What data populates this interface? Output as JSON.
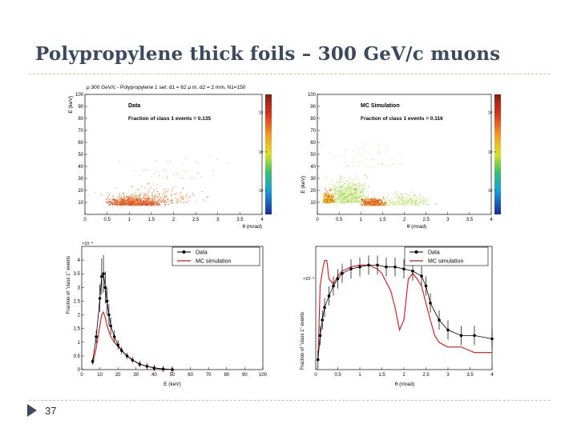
{
  "slide": {
    "title": "Polypropylene thick foils – 300 GeV/c muons",
    "page_number": "37"
  },
  "colors": {
    "data_marker": "#000000",
    "mc_line": "#dd1111",
    "heat_low": "#e0512a",
    "heat_mid": "#9ad24a"
  },
  "chart_data": [
    {
      "type": "heatmap",
      "title": "μ 300 GeV/c - Polypropylene 1 set: d1 = 62 μ m, d2 = 2 mm, N1=150",
      "label": "Data",
      "annotation": "Fraction of class 1 events = 0.135",
      "xlabel": "θ (mrad)",
      "ylabel": "E (keV)",
      "xlim": [
        0,
        4
      ],
      "ylim": [
        0,
        100
      ],
      "xticks": [
        "0",
        "0.5",
        "1",
        "1.5",
        "2",
        "2.5",
        "3",
        "3.5",
        "4"
      ],
      "yticks": [
        "10",
        "20",
        "30",
        "40",
        "50",
        "60",
        "70",
        "80",
        "90",
        "100"
      ],
      "colorbar_ticks": [
        "10⁻⁴",
        "10⁻⁵",
        "10⁻⁶"
      ],
      "density_peak": {
        "x": 1.1,
        "y": 13
      }
    },
    {
      "type": "heatmap",
      "label": "MC Simulation",
      "annotation": "Fraction of class 1 events = 0.116",
      "xlabel": "θ (mrad)",
      "ylabel": "E (keV)",
      "xlim": [
        0,
        4
      ],
      "ylim": [
        0,
        100
      ],
      "xticks": [
        "0",
        "0.5",
        "1",
        "1.5",
        "2",
        "2.5",
        "3",
        "3.5",
        "4"
      ],
      "yticks": [
        "10",
        "20",
        "30",
        "40",
        "50",
        "60",
        "70",
        "80",
        "90",
        "100"
      ],
      "colorbar_ticks": [
        "10⁻⁴",
        "10⁻⁵",
        "10⁻⁶"
      ],
      "density_peak": {
        "x": 1.3,
        "y": 13
      }
    },
    {
      "type": "line",
      "xlabel": "E (keV)",
      "ylabel": "Fraction of \"class 1\" events",
      "xlim": [
        0,
        100
      ],
      "ylim": [
        0,
        0.0045
      ],
      "exponent_label": "×10⁻³",
      "xticks": [
        "0",
        "10",
        "20",
        "30",
        "40",
        "50",
        "60",
        "70",
        "80",
        "90",
        "100"
      ],
      "yticks": [
        "0",
        "0.5",
        "1",
        "1.5",
        "2",
        "2.5",
        "3",
        "3.5",
        "4"
      ],
      "legend": [
        "Data",
        "MC simulation"
      ],
      "series": [
        {
          "name": "Data",
          "x": [
            6,
            8,
            10,
            11,
            12,
            13,
            14,
            15,
            16,
            18,
            20,
            22,
            25,
            28,
            32,
            36,
            40,
            45,
            50
          ],
          "values": [
            0.0003,
            0.0012,
            0.0026,
            0.0034,
            0.0035,
            0.003,
            0.0025,
            0.002,
            0.0016,
            0.0012,
            0.0009,
            0.0007,
            0.0005,
            0.00035,
            0.0002,
            0.00012,
            6e-05,
            2e-05,
            0.0
          ]
        },
        {
          "name": "MC simulation",
          "x": [
            6,
            8,
            10,
            11,
            12,
            13,
            14,
            15,
            16,
            18,
            20,
            22,
            25,
            28,
            32,
            36,
            40,
            45,
            50
          ],
          "values": [
            0.0002,
            0.0008,
            0.0016,
            0.002,
            0.0021,
            0.0019,
            0.0016,
            0.0014,
            0.0012,
            0.001,
            0.00085,
            0.0007,
            0.0005,
            0.00035,
            0.0002,
            0.00012,
            6e-05,
            2e-05,
            0.0
          ]
        }
      ]
    },
    {
      "type": "line",
      "xlabel": "θ (mrad)",
      "ylabel": "Fraction of \"class 1\" events",
      "xlim": [
        0,
        4
      ],
      "yscale": "log",
      "ylim": [
        2e-05,
        0.003
      ],
      "exponent_label": "×10⁻³",
      "xticks": [
        "0",
        "0.5",
        "1",
        "1.5",
        "2",
        "2.5",
        "3",
        "3.5",
        "4"
      ],
      "legend": [
        "Data",
        "MC simulation"
      ],
      "series": [
        {
          "name": "Data",
          "x": [
            0.05,
            0.1,
            0.15,
            0.2,
            0.3,
            0.4,
            0.5,
            0.6,
            0.8,
            1.0,
            1.2,
            1.4,
            1.6,
            1.8,
            2.0,
            2.2,
            2.4,
            2.5,
            2.6,
            2.8,
            3.0,
            3.3,
            3.6,
            4.0
          ],
          "values": [
            3e-05,
            8e-05,
            0.00015,
            0.00025,
            0.0004,
            0.0006,
            0.0008,
            0.001,
            0.0012,
            0.0013,
            0.0014,
            0.0014,
            0.0013,
            0.0013,
            0.0012,
            0.0011,
            0.0009,
            0.0006,
            0.0003,
            0.00015,
            0.0001,
            8e-05,
            8e-05,
            7e-05
          ]
        },
        {
          "name": "MC simulation",
          "x": [
            0.05,
            0.1,
            0.15,
            0.2,
            0.25,
            0.3,
            0.4,
            0.5,
            0.6,
            0.8,
            1.0,
            1.2,
            1.4,
            1.5,
            1.6,
            1.7,
            1.8,
            1.9,
            2.0,
            2.1,
            2.2,
            2.3,
            2.4,
            2.5,
            2.6,
            2.7,
            2.8,
            3.0,
            3.3,
            3.6,
            4.0
          ],
          "values": [
            3e-05,
            0.0006,
            0.0011,
            0.0017,
            0.0017,
            0.0008,
            0.00065,
            0.0009,
            0.0011,
            0.0013,
            0.0014,
            0.0014,
            0.0012,
            0.001,
            0.0007,
            0.0005,
            0.00025,
            0.0001,
            0.00015,
            0.0008,
            0.001,
            0.0008,
            0.0006,
            0.0003,
            0.00015,
            8e-05,
            6e-05,
            5e-05,
            5e-05,
            4e-05,
            4e-05
          ]
        }
      ]
    }
  ]
}
